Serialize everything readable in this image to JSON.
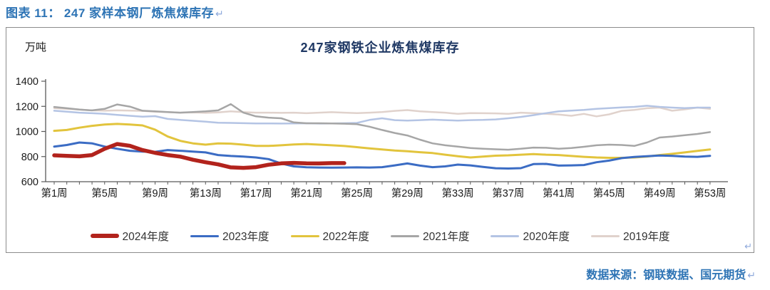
{
  "page": {
    "figure_caption": "图表 11： 247 家样本钢厂炼焦煤库存",
    "source_text": "数据来源：钢联数据、国元期货",
    "return_mark": "↵"
  },
  "chart_data": {
    "type": "line",
    "title": "247家钢铁企业炼焦煤库存",
    "unit_label": "万吨",
    "xlabel": "",
    "ylabel": "万吨",
    "ylim": [
      600,
      1400
    ],
    "y_ticks": [
      600,
      800,
      1000,
      1200,
      1400
    ],
    "x_range_weeks": [
      1,
      53
    ],
    "x_tick_weeks": [
      1,
      5,
      9,
      13,
      17,
      21,
      25,
      29,
      33,
      37,
      41,
      45,
      49,
      53
    ],
    "x_tick_label_prefix": "第",
    "x_tick_label_suffix": "周",
    "grid": false,
    "legend_position": "bottom",
    "axis_color": "#595959",
    "series": [
      {
        "name": "2024年度",
        "color": "#B2231C",
        "width": 5.5,
        "values": [
          810,
          806,
          802,
          812,
          862,
          900,
          886,
          852,
          830,
          812,
          800,
          775,
          755,
          738,
          714,
          710,
          716,
          735,
          746,
          750,
          746,
          745,
          748,
          748
        ]
      },
      {
        "name": "2023年度",
        "color": "#3B6CC4",
        "width": 3,
        "values": [
          880,
          892,
          912,
          905,
          880,
          862,
          846,
          840,
          838,
          852,
          846,
          840,
          833,
          812,
          805,
          800,
          793,
          780,
          745,
          722,
          715,
          713,
          712,
          713,
          714,
          713,
          716,
          730,
          745,
          728,
          716,
          722,
          736,
          730,
          718,
          707,
          705,
          708,
          740,
          742,
          728,
          730,
          733,
          755,
          768,
          788,
          797,
          803,
          808,
          806,
          800,
          798,
          806
        ]
      },
      {
        "name": "2022年度",
        "color": "#E2C43D",
        "width": 3,
        "values": [
          1005,
          1012,
          1030,
          1045,
          1055,
          1060,
          1055,
          1048,
          1015,
          960,
          925,
          905,
          895,
          905,
          903,
          895,
          885,
          885,
          890,
          896,
          900,
          895,
          890,
          884,
          875,
          865,
          857,
          848,
          843,
          835,
          828,
          815,
          803,
          793,
          800,
          807,
          810,
          815,
          820,
          815,
          812,
          805,
          798,
          793,
          790,
          790,
          793,
          800,
          812,
          822,
          833,
          845,
          857
        ]
      },
      {
        "name": "2021年度",
        "color": "#A6A6A6",
        "width": 2.5,
        "values": [
          1195,
          1185,
          1175,
          1168,
          1180,
          1215,
          1198,
          1165,
          1160,
          1155,
          1150,
          1155,
          1160,
          1168,
          1218,
          1150,
          1120,
          1110,
          1105,
          1072,
          1065,
          1065,
          1064,
          1062,
          1058,
          1038,
          1012,
          988,
          968,
          935,
          905,
          890,
          880,
          868,
          862,
          858,
          855,
          862,
          872,
          870,
          862,
          868,
          878,
          890,
          895,
          892,
          885,
          912,
          952,
          960,
          970,
          980,
          995
        ]
      },
      {
        "name": "2020年度",
        "color": "#B4C4E4",
        "width": 2.5,
        "values": [
          1165,
          1158,
          1150,
          1145,
          1140,
          1132,
          1125,
          1118,
          1122,
          1100,
          1092,
          1085,
          1078,
          1070,
          1068,
          1066,
          1064,
          1064,
          1063,
          1064,
          1065,
          1063,
          1064,
          1065,
          1068,
          1092,
          1105,
          1090,
          1086,
          1090,
          1094,
          1090,
          1086,
          1090,
          1092,
          1096,
          1105,
          1116,
          1130,
          1146,
          1160,
          1166,
          1172,
          1180,
          1186,
          1192,
          1196,
          1205,
          1196,
          1190,
          1186,
          1190,
          1190
        ]
      },
      {
        "name": "2019年度",
        "color": "#E0D2CC",
        "width": 2.5,
        "values": [
          1186,
          1180,
          1175,
          1168,
          1165,
          1168,
          1166,
          1164,
          1158,
          1154,
          1150,
          1152,
          1148,
          1152,
          1160,
          1154,
          1150,
          1150,
          1148,
          1150,
          1145,
          1150,
          1154,
          1150,
          1146,
          1150,
          1155,
          1164,
          1170,
          1160,
          1155,
          1150,
          1140,
          1146,
          1145,
          1144,
          1140,
          1150,
          1145,
          1140,
          1135,
          1125,
          1140,
          1120,
          1136,
          1164,
          1172,
          1185,
          1190,
          1165,
          1176,
          1190,
          1180
        ]
      }
    ]
  }
}
